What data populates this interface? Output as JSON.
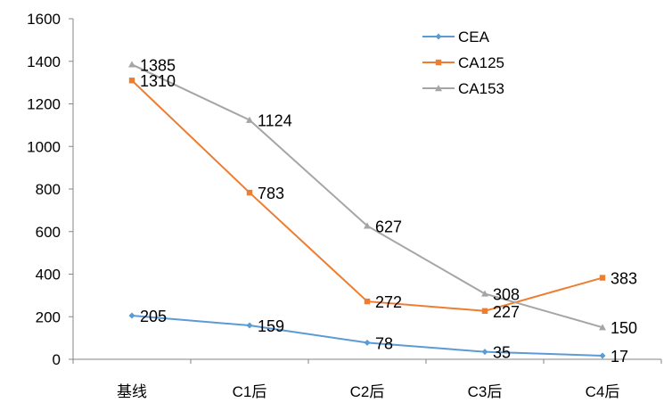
{
  "chart_data": {
    "type": "line",
    "title": "",
    "xlabel": "",
    "ylabel": "",
    "categories": [
      "基线",
      "C1后",
      "C2后",
      "C3后",
      "C4后"
    ],
    "ylim": [
      0,
      1600
    ],
    "yticks": [
      0,
      200,
      400,
      600,
      800,
      1000,
      1200,
      1400,
      1600
    ],
    "grid": false,
    "legend_position": "top-right",
    "series": [
      {
        "name": "CEA",
        "values": [
          205,
          159,
          78,
          35,
          17
        ],
        "color": "#5B9BD5",
        "marker": "diamond"
      },
      {
        "name": "CA125",
        "values": [
          1310,
          783,
          272,
          227,
          383
        ],
        "color": "#ED7D31",
        "marker": "square"
      },
      {
        "name": "CA153",
        "values": [
          1385,
          1124,
          627,
          308,
          150
        ],
        "color": "#A5A5A5",
        "marker": "triangle"
      }
    ]
  }
}
